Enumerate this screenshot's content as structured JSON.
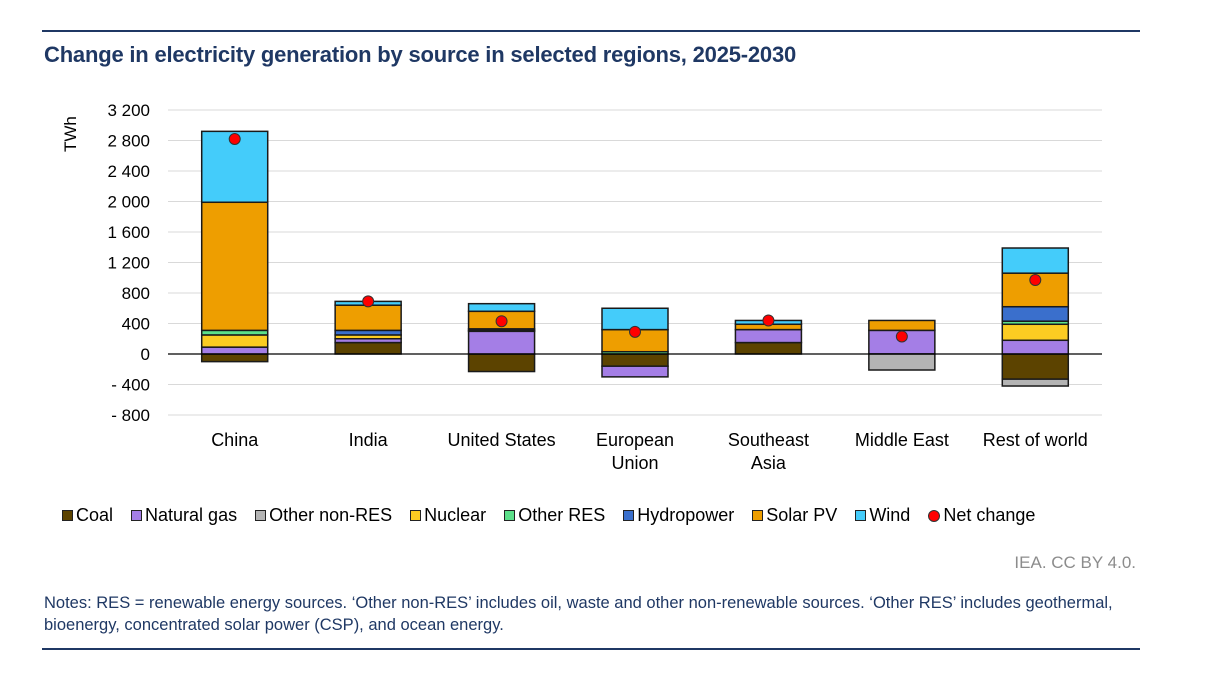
{
  "header": {
    "title": "Change in electricity generation by source in selected regions, 2025-2030"
  },
  "footer": {
    "source": "IEA. CC BY 4.0.",
    "notes": "Notes: RES = renewable energy sources. ‘Other non-RES’ includes oil, waste and other non-renewable sources. ‘Other RES’ includes geothermal, bioenergy, concentrated solar power (CSP), and ocean energy."
  },
  "chart_data": {
    "type": "bar",
    "stacked": true,
    "title": "Change in electricity generation by source in selected regions, 2025-2030",
    "xlabel": "",
    "ylabel": "TWh",
    "ylim": [
      -800,
      3200
    ],
    "yticks": [
      3200,
      2800,
      2400,
      2000,
      1600,
      1200,
      800,
      400,
      0,
      -400,
      -800
    ],
    "ytick_labels": [
      "3 200",
      "2 800",
      "2 400",
      "2 000",
      "1 600",
      "1 200",
      "800",
      "400",
      "0",
      "- 400",
      "- 800"
    ],
    "grid": true,
    "legend_position": "bottom",
    "categories": [
      "China",
      "India",
      "United States",
      "European Union",
      "Southeast Asia",
      "Middle East",
      "Rest of world"
    ],
    "category_lines": [
      [
        "China"
      ],
      [
        "India"
      ],
      [
        "United States"
      ],
      [
        "European",
        "Union"
      ],
      [
        "Southeast",
        "Asia"
      ],
      [
        "Middle East"
      ],
      [
        "Rest of world"
      ]
    ],
    "series": [
      {
        "name": "Coal",
        "color": "#5c4300",
        "values": [
          -100,
          150,
          -230,
          -160,
          150,
          0,
          -330
        ]
      },
      {
        "name": "Natural gas",
        "color": "#a47ee6",
        "values": [
          90,
          50,
          300,
          -140,
          170,
          310,
          180
        ]
      },
      {
        "name": "Other non-RES",
        "color": "#b4b4b4",
        "values": [
          0,
          0,
          0,
          0,
          0,
          -210,
          -90
        ]
      },
      {
        "name": "Nuclear",
        "color": "#fccc22",
        "values": [
          160,
          50,
          0,
          0,
          0,
          0,
          210
        ]
      },
      {
        "name": "Other RES",
        "color": "#5ce08a",
        "values": [
          60,
          0,
          10,
          30,
          0,
          0,
          40
        ]
      },
      {
        "name": "Hydropower",
        "color": "#3a6fcc",
        "values": [
          0,
          60,
          20,
          0,
          0,
          0,
          190
        ]
      },
      {
        "name": "Solar PV",
        "color": "#ee9e00",
        "values": [
          1680,
          330,
          230,
          290,
          70,
          130,
          440
        ]
      },
      {
        "name": "Wind",
        "color": "#44ccfa",
        "values": [
          930,
          50,
          100,
          280,
          50,
          0,
          330
        ]
      }
    ],
    "net_change": {
      "name": "Net change",
      "color": "#ff0000",
      "values": [
        2820,
        690,
        430,
        290,
        440,
        230,
        970
      ]
    }
  }
}
